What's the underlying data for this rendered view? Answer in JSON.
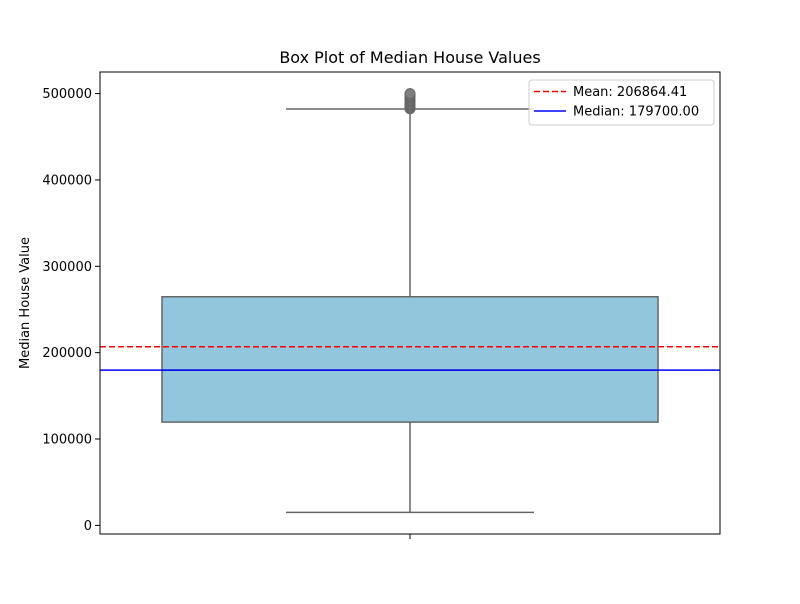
{
  "chart_data": {
    "type": "box",
    "title": "Box Plot of Median House Values",
    "xlabel": "",
    "ylabel": "Median House Value",
    "ylim": [
      -10000,
      525000
    ],
    "yticks": [
      0,
      100000,
      200000,
      300000,
      400000,
      500000
    ],
    "ytick_labels": [
      "0",
      "100000",
      "200000",
      "300000",
      "400000",
      "500000"
    ],
    "grid": false,
    "legend_position": "top-right",
    "box": {
      "min_whisker": 14999,
      "q1": 119600,
      "median": 179700,
      "q3": 264725,
      "max_whisker": 482200,
      "outliers_min": 482500,
      "outliers_max": 500001,
      "fill_color": "#92c6dc",
      "edge_color": "#666666"
    },
    "reference_lines": [
      {
        "name": "Mean: 206864.41",
        "value": 206864.41,
        "color": "#ff0000",
        "style": "dashed"
      },
      {
        "name": "Median: 179700.00",
        "value": 179700.0,
        "color": "#0000ff",
        "style": "solid"
      }
    ]
  }
}
